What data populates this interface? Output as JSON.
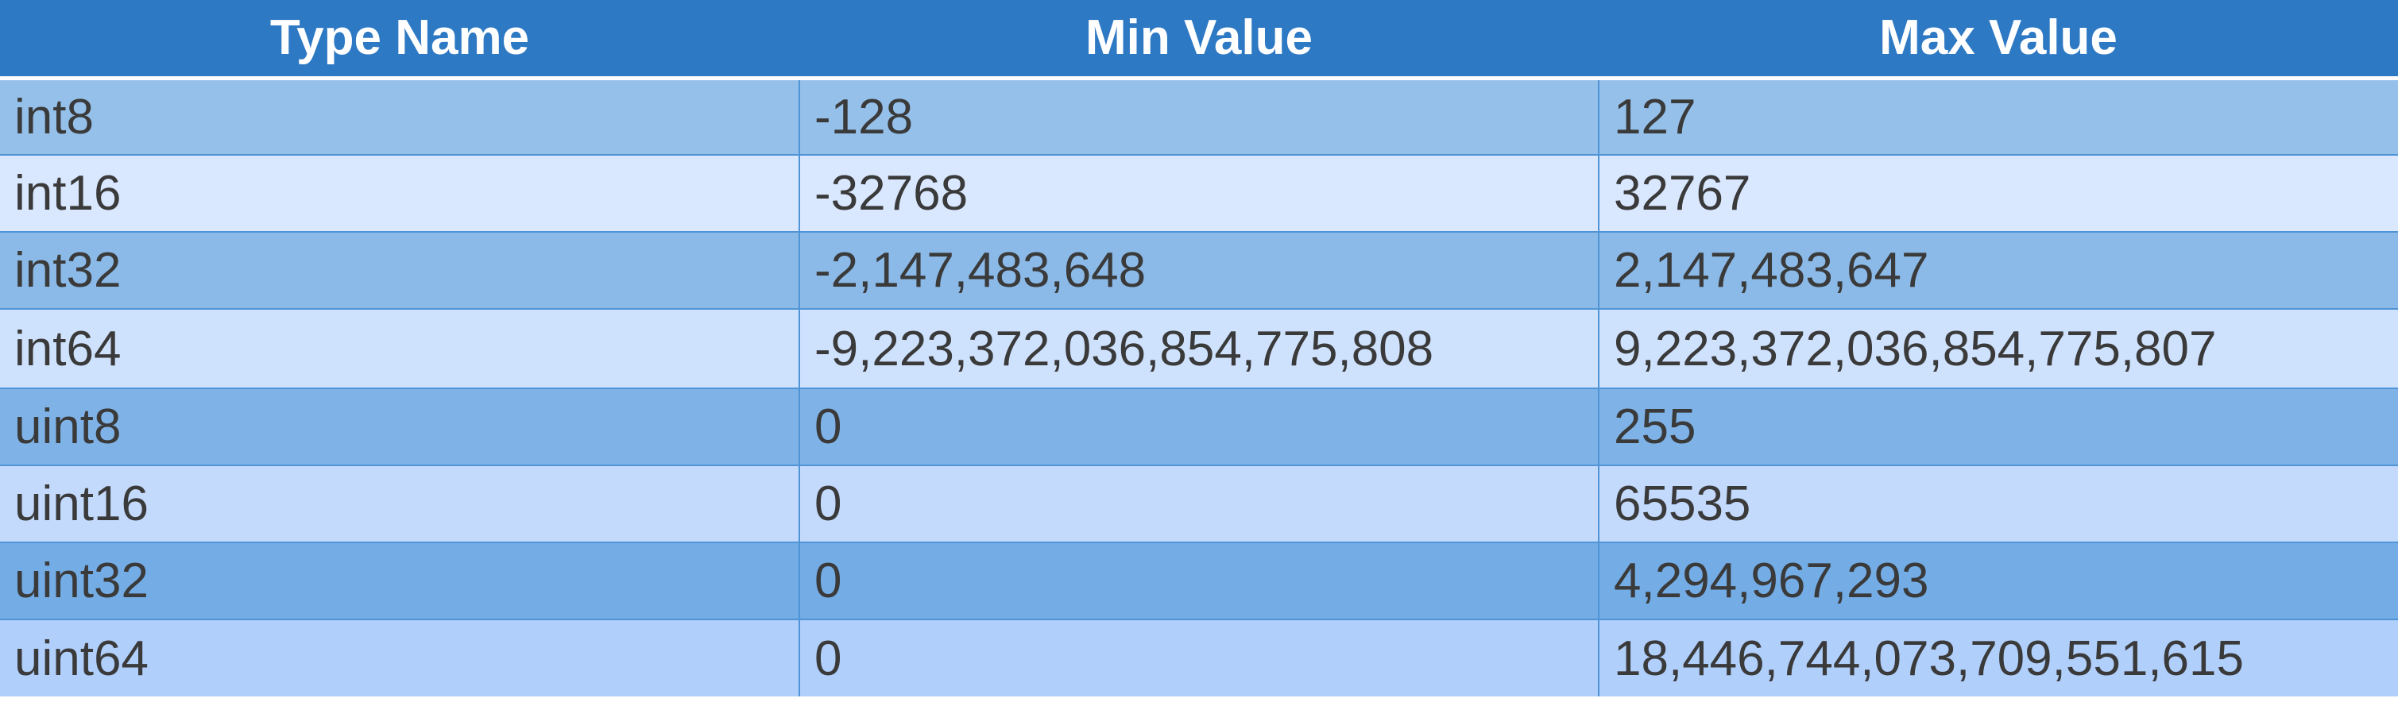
{
  "table": {
    "headers": [
      "Type Name",
      "Min Value",
      "Max Value"
    ],
    "rows": [
      [
        "int8",
        "-128",
        "127"
      ],
      [
        "int16",
        "-32768",
        "32767"
      ],
      [
        "int32",
        "-2,147,483,648",
        "2,147,483,647"
      ],
      [
        "int64",
        "-9,223,372,036,854,775,808",
        "9,223,372,036,854,775,807"
      ],
      [
        "uint8",
        "0",
        "255"
      ],
      [
        "uint16",
        "0",
        "65535"
      ],
      [
        "uint32",
        "0",
        "4,294,967,293"
      ],
      [
        "uint64",
        "0",
        "18,446,744,073,709,551,615"
      ]
    ]
  },
  "colors": {
    "header_bg": "#2e79c4",
    "header_text": "#ffffff",
    "cell_text": "#3a3a3a",
    "grid_line": "#4f94d6",
    "row_backgrounds": [
      "#94c0ea",
      "#d9e8ff",
      "#8bbae8",
      "#cfe2fd",
      "#7fb3e7",
      "#c3dafd",
      "#74ace5",
      "#b0cffa"
    ]
  }
}
